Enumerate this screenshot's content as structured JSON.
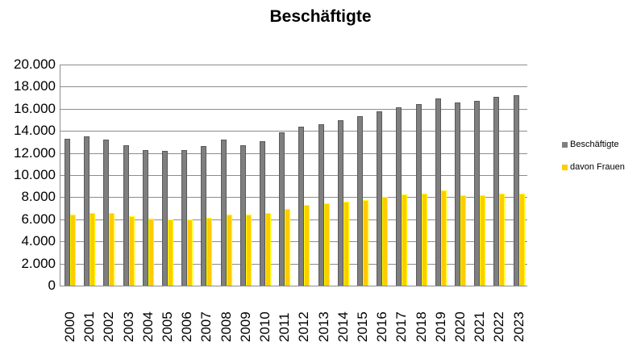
{
  "chart_data": {
    "type": "bar",
    "title": "Beschäftigte",
    "xlabel": "",
    "ylabel": "",
    "ylim": [
      0,
      20000
    ],
    "yticks": [
      0,
      2000,
      4000,
      6000,
      8000,
      10000,
      12000,
      14000,
      16000,
      18000,
      20000
    ],
    "ytick_labels": [
      "0",
      "2.000",
      "4.000",
      "6.000",
      "8.000",
      "10.000",
      "12.000",
      "14.000",
      "16.000",
      "18.000",
      "20.000"
    ],
    "grid": true,
    "legend_position": "right",
    "categories": [
      "2000",
      "2001",
      "2002",
      "2003",
      "2004",
      "2005",
      "2006",
      "2007",
      "2008",
      "2009",
      "2010",
      "2011",
      "2012",
      "2013",
      "2014",
      "2015",
      "2016",
      "2017",
      "2018",
      "2019",
      "2020",
      "2021",
      "2022",
      "2023"
    ],
    "series": [
      {
        "name": "Beschäftigte",
        "color": "#7f7f7f",
        "values": [
          13300,
          13500,
          13200,
          12700,
          12300,
          12200,
          12300,
          12600,
          13200,
          12700,
          13100,
          13900,
          14400,
          14600,
          15000,
          15300,
          15800,
          16100,
          16400,
          16950,
          16600,
          16750,
          17050,
          17250
        ]
      },
      {
        "name": "davon Frauen",
        "color": "#ffcc00",
        "values": [
          6400,
          6550,
          6550,
          6300,
          6050,
          6000,
          6000,
          6150,
          6400,
          6400,
          6550,
          6950,
          7300,
          7450,
          7600,
          7750,
          8050,
          8250,
          8350,
          8650,
          8200,
          8200,
          8350,
          8350
        ]
      }
    ]
  }
}
